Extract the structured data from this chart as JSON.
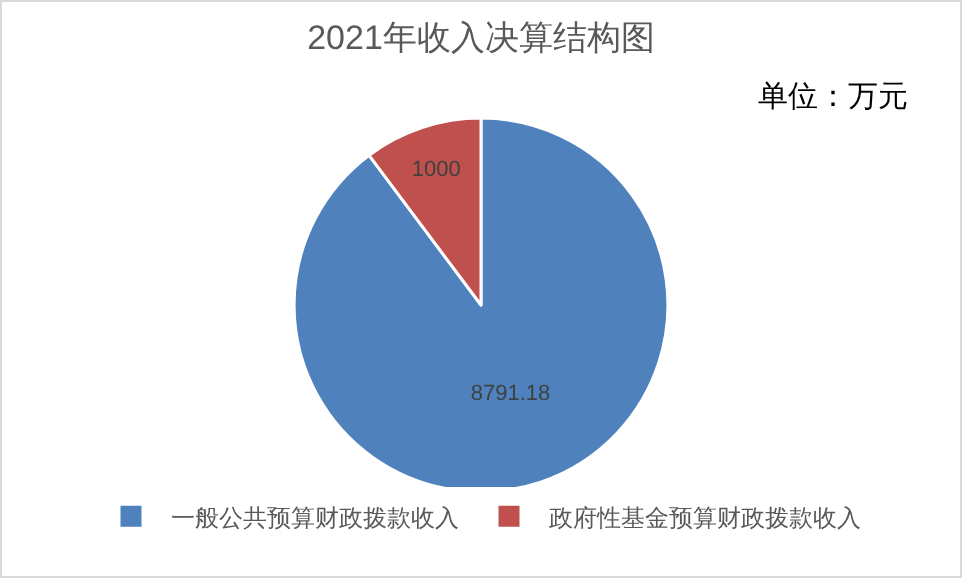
{
  "chart_data": {
    "type": "pie",
    "title": "2021年收入决算结构图",
    "annotations": [
      "单位：万元"
    ],
    "categories": [
      "一般公共预算财政拨款收入",
      "政府性基金预算财政拨款收入"
    ],
    "values": [
      8791.18,
      1000
    ],
    "colors": [
      "#4f81bd",
      "#c0504d"
    ],
    "data_labels": true,
    "legend": "bottom"
  }
}
